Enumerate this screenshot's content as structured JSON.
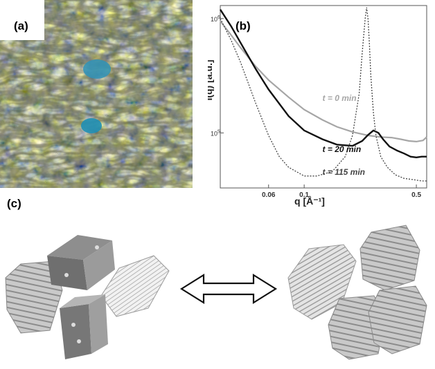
{
  "panels": {
    "a": {
      "label": "(a)"
    },
    "b": {
      "label": "(b)"
    },
    "c": {
      "label": "(c)"
    }
  },
  "colors": {
    "t0": "#a6a6a6",
    "t20": "#111111",
    "t115": "#444444",
    "crystal_blue": "#2f93b8",
    "crystal_yellow": "#d8cf8a"
  },
  "chart_data": {
    "type": "line",
    "title": "",
    "xlabel": "q [Å⁻¹]",
    "ylabel": "I(q) [a.u.]",
    "x_scale": "log",
    "y_scale": "log",
    "xlim": [
      0.03,
      0.58
    ],
    "ylim": [
      33000,
      1300000
    ],
    "x_ticks": [
      {
        "value": 0.06,
        "label": "0.06"
      },
      {
        "value": 0.1,
        "label": "0.1"
      },
      {
        "value": 0.5,
        "label": "0.5"
      }
    ],
    "y_ticks": [
      {
        "value": 100000,
        "label_base": "10",
        "label_exp": "5"
      },
      {
        "value": 1000000,
        "label_base": "10",
        "label_exp": "6"
      }
    ],
    "grid": false,
    "series": [
      {
        "name": "t = 0 min",
        "style": "solid-gray",
        "x": [
          0.03,
          0.035,
          0.04,
          0.05,
          0.06,
          0.08,
          0.1,
          0.13,
          0.16,
          0.2,
          0.25,
          0.3,
          0.35,
          0.4,
          0.45,
          0.5,
          0.55,
          0.58
        ],
        "y": [
          950000,
          720000,
          560000,
          380000,
          290000,
          205000,
          160000,
          130000,
          113000,
          102000,
          95000,
          92000,
          91000,
          88000,
          85000,
          84000,
          86000,
          92000
        ]
      },
      {
        "name": "t = 20 min",
        "style": "solid-black",
        "x": [
          0.03,
          0.035,
          0.04,
          0.05,
          0.06,
          0.08,
          0.1,
          0.13,
          0.16,
          0.2,
          0.23,
          0.25,
          0.27,
          0.29,
          0.31,
          0.34,
          0.38,
          0.42,
          0.46,
          0.5,
          0.54,
          0.58
        ],
        "y": [
          1200000,
          860000,
          620000,
          360000,
          240000,
          140000,
          105000,
          88000,
          79000,
          77000,
          85000,
          96000,
          105000,
          100000,
          88000,
          76000,
          70000,
          66000,
          62000,
          61000,
          62000,
          62000
        ]
      },
      {
        "name": "t = 115 min",
        "style": "dotted-dark",
        "x": [
          0.03,
          0.035,
          0.04,
          0.05,
          0.06,
          0.07,
          0.08,
          0.1,
          0.12,
          0.15,
          0.18,
          0.2,
          0.22,
          0.23,
          0.24,
          0.245,
          0.25,
          0.255,
          0.26,
          0.27,
          0.28,
          0.3,
          0.33,
          0.37,
          0.42,
          0.48,
          0.54,
          0.58
        ],
        "y": [
          1000000,
          650000,
          420000,
          180000,
          95000,
          62000,
          50000,
          42000,
          42000,
          46000,
          62000,
          95000,
          220000,
          500000,
          1000000,
          1250000,
          1000000,
          600000,
          320000,
          150000,
          95000,
          62000,
          50000,
          43000,
          40000,
          39000,
          38000,
          38000
        ]
      }
    ],
    "annotations": [
      {
        "text": "t = 0 min",
        "series": "t = 0 min"
      },
      {
        "text": "t = 20 min",
        "series": "t = 20 min"
      },
      {
        "text": "t = 115 min",
        "series": "t = 115 min"
      }
    ]
  }
}
